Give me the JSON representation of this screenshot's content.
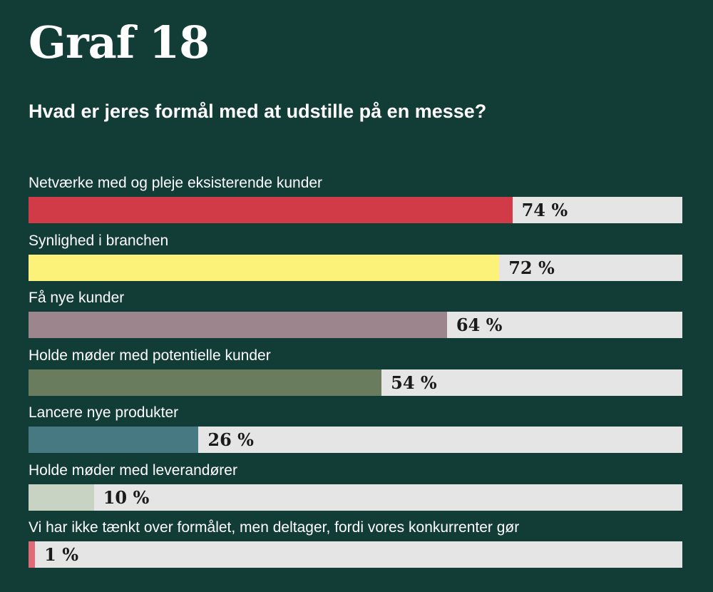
{
  "header": {
    "title": "Graf 18",
    "subtitle": "Hvad er jeres formål med at udstille på en messe?"
  },
  "chart_data": {
    "type": "bar",
    "orientation": "horizontal",
    "title": "Graf 18",
    "subtitle": "Hvad er jeres formål med at udstille på en messe?",
    "unit": "%",
    "xlim": [
      0,
      100
    ],
    "categories": [
      "Netværke med og pleje eksisterende kunder",
      "Synlighed i branchen",
      "Få nye kunder",
      "Holde møder med potentielle kunder",
      "Lancere nye produkter",
      "Holde møder med leverandører",
      "Vi har ikke tænkt over formålet, men deltager, fordi vores konkurrenter gør"
    ],
    "values": [
      74,
      72,
      64,
      54,
      26,
      10,
      1
    ],
    "value_labels": [
      "74 %",
      "72 %",
      "64 %",
      "54 %",
      "26 %",
      "10 %",
      "1 %"
    ],
    "colors": [
      "#d13b47",
      "#fcf27a",
      "#9c858c",
      "#6a7c5e",
      "#467982",
      "#c9d3c4",
      "#e06a75"
    ],
    "track_color": "#e6e5e6"
  }
}
